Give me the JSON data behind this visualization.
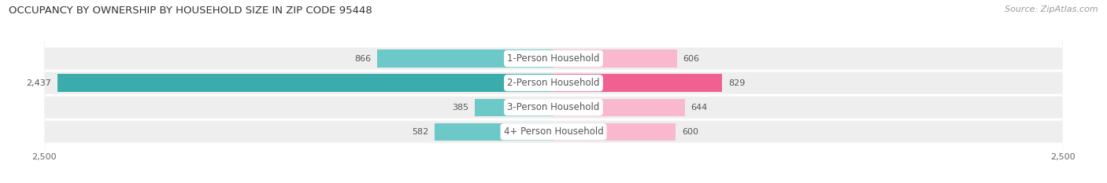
{
  "title": "OCCUPANCY BY OWNERSHIP BY HOUSEHOLD SIZE IN ZIP CODE 95448",
  "source": "Source: ZipAtlas.com",
  "categories": [
    "1-Person Household",
    "2-Person Household",
    "3-Person Household",
    "4+ Person Household"
  ],
  "owner_values": [
    866,
    2437,
    385,
    582
  ],
  "renter_values": [
    606,
    829,
    644,
    600
  ],
  "owner_color_light": "#6dc8c8",
  "owner_color_dark": "#3aacac",
  "renter_color_light": "#f9b8ce",
  "renter_color_dark": "#f06090",
  "axis_limit": 2500,
  "bg_color": "#ffffff",
  "bar_bg_color": "#eeeeee",
  "row_gap_color": "#ffffff",
  "bar_height": 0.72,
  "title_fontsize": 9.5,
  "source_fontsize": 8,
  "label_fontsize": 8,
  "tick_fontsize": 8,
  "category_fontsize": 8.5,
  "value_label_fontsize": 8
}
